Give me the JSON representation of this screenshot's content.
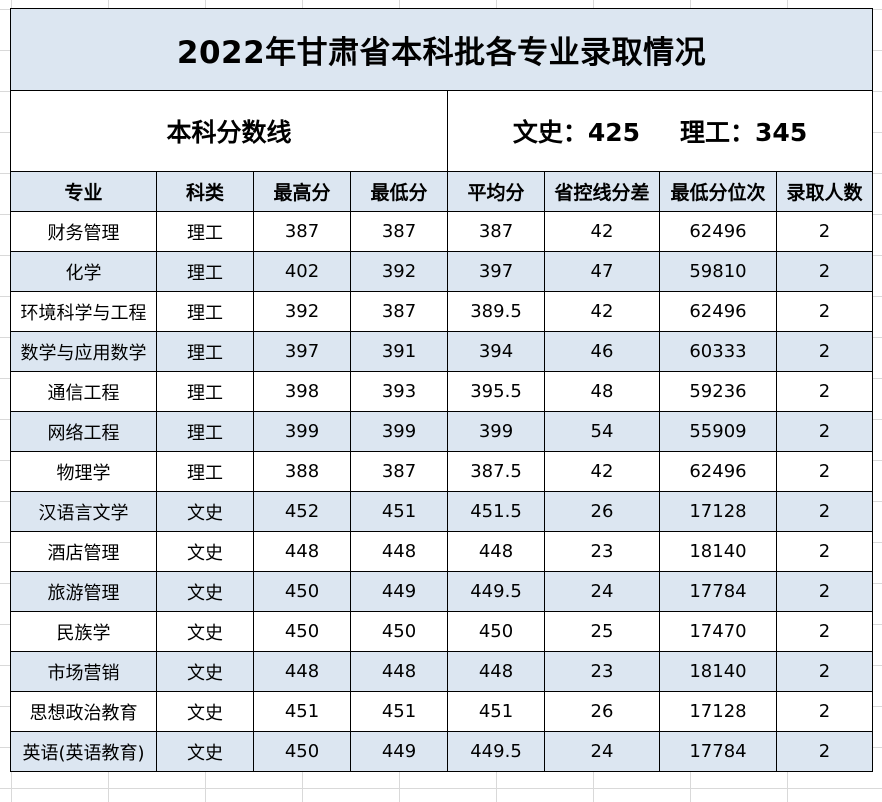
{
  "title": "2022年甘肃省本科批各专业录取情况",
  "score_line": {
    "label": "本科分数线",
    "wenshi_label": "文史：",
    "wenshi_value": "425",
    "ligong_label": "理工：",
    "ligong_value": "345"
  },
  "columns": [
    "专业",
    "科类",
    "最高分",
    "最低分",
    "平均分",
    "省控线分差",
    "最低分位次",
    "录取人数"
  ],
  "rows": [
    [
      "财务管理",
      "理工",
      "387",
      "387",
      "387",
      "42",
      "62496",
      "2"
    ],
    [
      "化学",
      "理工",
      "402",
      "392",
      "397",
      "47",
      "59810",
      "2"
    ],
    [
      "环境科学与工程",
      "理工",
      "392",
      "387",
      "389.5",
      "42",
      "62496",
      "2"
    ],
    [
      "数学与应用数学",
      "理工",
      "397",
      "391",
      "394",
      "46",
      "60333",
      "2"
    ],
    [
      "通信工程",
      "理工",
      "398",
      "393",
      "395.5",
      "48",
      "59236",
      "2"
    ],
    [
      "网络工程",
      "理工",
      "399",
      "399",
      "399",
      "54",
      "55909",
      "2"
    ],
    [
      "物理学",
      "理工",
      "388",
      "387",
      "387.5",
      "42",
      "62496",
      "2"
    ],
    [
      "汉语言文学",
      "文史",
      "452",
      "451",
      "451.5",
      "26",
      "17128",
      "2"
    ],
    [
      "酒店管理",
      "文史",
      "448",
      "448",
      "448",
      "23",
      "18140",
      "2"
    ],
    [
      "旅游管理",
      "文史",
      "450",
      "449",
      "449.5",
      "24",
      "17784",
      "2"
    ],
    [
      "民族学",
      "文史",
      "450",
      "450",
      "450",
      "25",
      "17470",
      "2"
    ],
    [
      "市场营销",
      "文史",
      "448",
      "448",
      "448",
      "23",
      "18140",
      "2"
    ],
    [
      "思想政治教育",
      "文史",
      "451",
      "451",
      "451",
      "26",
      "17128",
      "2"
    ],
    [
      "英语(英语教育)",
      "文史",
      "450",
      "449",
      "449.5",
      "24",
      "17784",
      "2"
    ]
  ],
  "colors": {
    "header_fill": "#dce6f1",
    "border": "#000000",
    "gridline": "#d9d9d9"
  }
}
